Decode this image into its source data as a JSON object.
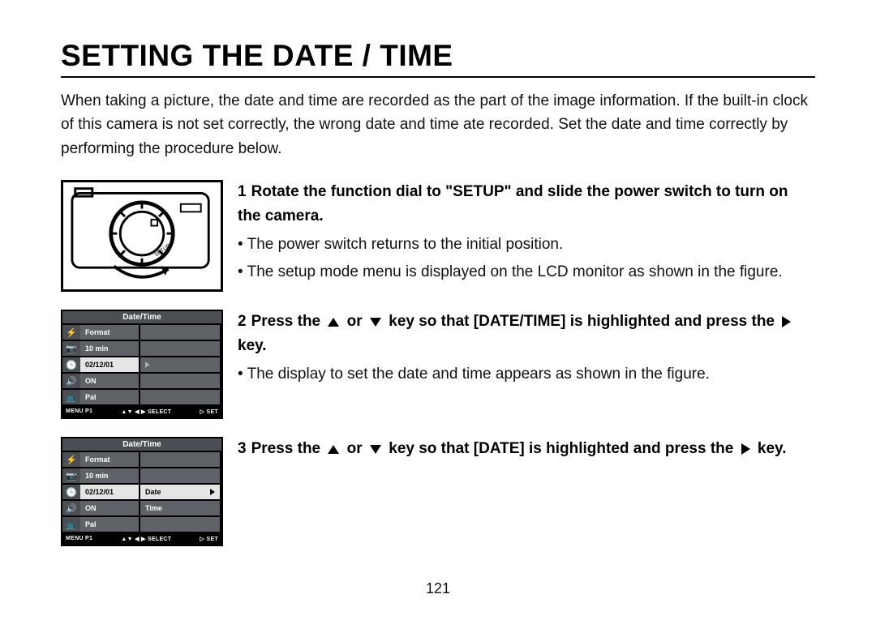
{
  "title": "Setting the Date / Time",
  "intro": "When taking a picture, the date and time are recorded as the part of the image information. If the built-in clock of this camera is not set correctly, the wrong date and time ate recorded. Set the date and time correctly by performing the procedure below.",
  "page_number": "121",
  "steps": [
    {
      "num": "1",
      "head_before": "Rotate the function dial to \"SETUP\" and slide the power switch to turn on the camera.",
      "bullets": [
        "The power switch returns to the initial position.",
        "The setup mode menu is displayed on the LCD monitor as shown in the figure."
      ]
    },
    {
      "num": "2",
      "head_parts": {
        "a": "Press the ",
        "b": " or ",
        "c": " key so that [DATE/TIME] is highlighted and press the ",
        "d": " key."
      },
      "bullets": [
        "The display to set the date and time appears as shown in the figure."
      ]
    },
    {
      "num": "3",
      "head_parts": {
        "a": "Press the ",
        "b": " or ",
        "c": " key so that [DATE] is highlighted and press the ",
        "d": " key."
      }
    }
  ],
  "lcd1": {
    "title": "Date/Time",
    "icons": [
      "⚡",
      "📷",
      "🕒",
      "🔊",
      "📺"
    ],
    "rows": [
      {
        "main": "Format",
        "sub": "",
        "hl_main": false,
        "hl_sub": false
      },
      {
        "main": "10 min",
        "sub": "",
        "hl_main": false,
        "hl_sub": false
      },
      {
        "main": "02/12/01",
        "sub": "▶",
        "hl_main": true,
        "hl_sub": false
      },
      {
        "main": "ON",
        "sub": "",
        "hl_main": false,
        "hl_sub": false
      },
      {
        "main": "Pal",
        "sub": "",
        "hl_main": false,
        "hl_sub": false
      }
    ],
    "footer_left": "MENU P1",
    "footer_mid": "▲▼ ◀ ▶  SELECT",
    "footer_right": "▷  SET"
  },
  "lcd2": {
    "title": "Date/Time",
    "icons": [
      "⚡",
      "📷",
      "🕒",
      "🔊",
      "📺"
    ],
    "rows": [
      {
        "main": "Format",
        "sub": "",
        "hl_main": false,
        "hl_sub": false
      },
      {
        "main": "10 min",
        "sub": "",
        "hl_main": false,
        "hl_sub": false
      },
      {
        "main": "02/12/01",
        "sub": "Date",
        "hl_main": true,
        "hl_sub": true,
        "show_arrow": true
      },
      {
        "main": "ON",
        "sub": "Time",
        "hl_main": false,
        "hl_sub": false
      },
      {
        "main": "Pal",
        "sub": "",
        "hl_main": false,
        "hl_sub": false
      }
    ],
    "footer_left": "MENU P1",
    "footer_mid": "▲▼ ◀ ▶  SELECT",
    "footer_right": "▷  SET"
  },
  "colors": {
    "text": "#111111",
    "rule": "#000000",
    "lcd_bg": "#4b4e52",
    "lcd_cell": "#5f6266",
    "lcd_hl": "#e5e5e5"
  }
}
